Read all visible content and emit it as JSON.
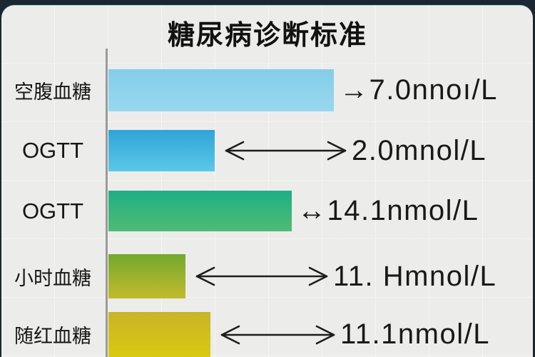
{
  "title": "糖尿病诊断标准",
  "colors": {
    "frame_bg": "#1b2633",
    "card_bg": "#ECECEA",
    "axis_line": "#9a9a9a",
    "text": "#191919"
  },
  "chart_data": {
    "type": "bar",
    "orientation": "horizontal",
    "title": "糖尿病诊断标准",
    "unit": "mmol/L",
    "categories": [
      "空腹血糖",
      "OGTT",
      "OGTT",
      "小时血糖",
      "随红血糖"
    ],
    "values": [
      7.0,
      2.0,
      14.1,
      11.0,
      11.1
    ],
    "legend": null,
    "grid": "faint",
    "rows": [
      {
        "label": "空腹血糖",
        "value_text": "→7.0nnoı/L",
        "value": 7.0,
        "bar_len": 316,
        "bar_top_color": "#84cde9",
        "bar_bottom_color": "#98d8ee",
        "long_arrow": false,
        "arrow_len": 0
      },
      {
        "label": "OGTT",
        "value_text": "2.0mnol/L",
        "value": 2.0,
        "bar_len": 149,
        "bar_top_color": "#2fa4d7",
        "bar_bottom_color": "#5cc8e8",
        "long_arrow": true,
        "arrow_len": 175
      },
      {
        "label": "OGTT",
        "value_text": "↔14.1nmol/L",
        "value": 14.1,
        "bar_len": 257,
        "bar_top_color": "#1eaf85",
        "bar_bottom_color": "#50bb73",
        "long_arrow": false,
        "arrow_len": 0
      },
      {
        "label": "小时血糖",
        "value_text": "11. Hmnol/L",
        "value": 11.0,
        "bar_len": 108,
        "bar_top_color": "#72a930",
        "bar_bottom_color": "#c2bb2b",
        "long_arrow": true,
        "arrow_len": 190
      },
      {
        "label": "随红血糖",
        "value_text": "11.1nmol/L",
        "value": 11.1,
        "bar_len": 143,
        "bar_top_color": "#c8b427",
        "bar_bottom_color": "#d8ca12",
        "long_arrow": true,
        "arrow_len": 165
      }
    ]
  }
}
